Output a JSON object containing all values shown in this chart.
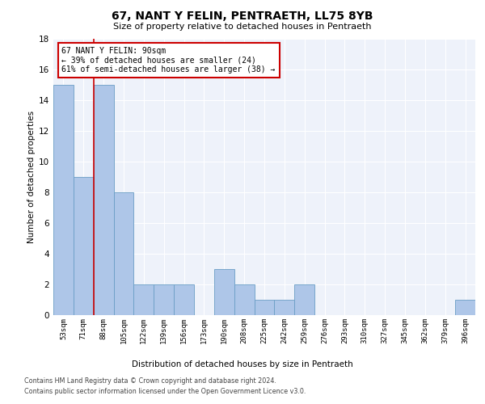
{
  "title": "67, NANT Y FELIN, PENTRAETH, LL75 8YB",
  "subtitle": "Size of property relative to detached houses in Pentraeth",
  "xlabel": "Distribution of detached houses by size in Pentraeth",
  "ylabel": "Number of detached properties",
  "categories": [
    "53sqm",
    "71sqm",
    "88sqm",
    "105sqm",
    "122sqm",
    "139sqm",
    "156sqm",
    "173sqm",
    "190sqm",
    "208sqm",
    "225sqm",
    "242sqm",
    "259sqm",
    "276sqm",
    "293sqm",
    "310sqm",
    "327sqm",
    "345sqm",
    "362sqm",
    "379sqm",
    "396sqm"
  ],
  "values": [
    15,
    9,
    15,
    8,
    2,
    2,
    2,
    0,
    3,
    2,
    1,
    1,
    2,
    0,
    0,
    0,
    0,
    0,
    0,
    0,
    1
  ],
  "bar_color": "#aec6e8",
  "bar_edge_color": "#6a9ec5",
  "marker_label": "67 NANT Y FELIN: 90sqm",
  "annotation_line1": "← 39% of detached houses are smaller (24)",
  "annotation_line2": "61% of semi-detached houses are larger (38) →",
  "annotation_box_color": "#ffffff",
  "annotation_box_edge_color": "#cc0000",
  "vline_x": 1.5,
  "vline_color": "#cc0000",
  "ylim": [
    0,
    18
  ],
  "yticks": [
    0,
    2,
    4,
    6,
    8,
    10,
    12,
    14,
    16,
    18
  ],
  "background_color": "#eef2fa",
  "grid_color": "#ffffff",
  "footer_line1": "Contains HM Land Registry data © Crown copyright and database right 2024.",
  "footer_line2": "Contains public sector information licensed under the Open Government Licence v3.0."
}
